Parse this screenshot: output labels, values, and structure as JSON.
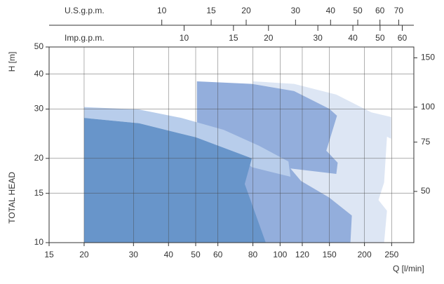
{
  "chart_data": {
    "type": "area",
    "xlabel": "Q  [l/min]",
    "ylabel": "H  [m]",
    "ylabel2": "TOTAL HEAD",
    "log_scale": true,
    "grid": true,
    "xlim": [
      15,
      300
    ],
    "xticks": [
      15,
      20,
      30,
      40,
      50,
      60,
      80,
      100,
      120,
      150,
      200,
      250
    ],
    "ylim": [
      10,
      50
    ],
    "yticks": [
      10,
      15,
      20,
      30,
      40,
      50
    ],
    "y2lim": [
      32.81,
      164.04
    ],
    "y2ticks": [
      50,
      75,
      100,
      150
    ],
    "top_axes": [
      {
        "label": "U.S.g.p.m.",
        "lim": [
          3.963,
          79.26
        ],
        "ticks": [
          10,
          15,
          20,
          30,
          40,
          50,
          60,
          70
        ]
      },
      {
        "label": "Imp.g.p.m.",
        "lim": [
          3.3,
          65.99
        ],
        "ticks": [
          10,
          15,
          20,
          30,
          40,
          50,
          60
        ]
      }
    ],
    "series": [
      {
        "color": "#dde6f4",
        "x": [
          80.2,
          112.2,
          158.7,
          211.8,
          249,
          249,
          240.6,
          235,
          224.4,
          240.6,
          235,
          88.9,
          80.2
        ],
        "values": [
          37.7,
          36.9,
          33.8,
          29.2,
          28.1,
          23.5,
          23.9,
          16.4,
          14.2,
          13.0,
          10,
          10,
          18.4
        ]
      },
      {
        "color": "#93aedc",
        "x": [
          50.5,
          79.3,
          112.2,
          149.6,
          159.6,
          146.2,
          160.5,
          158.7,
          108.9,
          118.8,
          149.6,
          180.3,
          178.2,
          50.5
        ],
        "values": [
          37.7,
          36.9,
          34.8,
          30.1,
          28.4,
          21.3,
          19.3,
          17.6,
          18.4,
          16.6,
          14.5,
          12.5,
          10,
          10
        ]
      },
      {
        "color": "#b8cdeb",
        "x": [
          20,
          31.4,
          44.4,
          62.9,
          84,
          107.1,
          108.9,
          79.3,
          70.6,
          49.9,
          31.4,
          20
        ],
        "values": [
          30.5,
          29.9,
          27.9,
          25.3,
          22.2,
          19.5,
          17.2,
          18.6,
          20.7,
          23.8,
          26.7,
          27.9
        ]
      },
      {
        "color": "#6895ca",
        "x": [
          20,
          31.4,
          49.9,
          70.6,
          79.3,
          74.8,
          88.9,
          20
        ],
        "values": [
          27.9,
          26.7,
          23.8,
          20.9,
          20.0,
          16.2,
          10,
          10
        ]
      }
    ]
  }
}
